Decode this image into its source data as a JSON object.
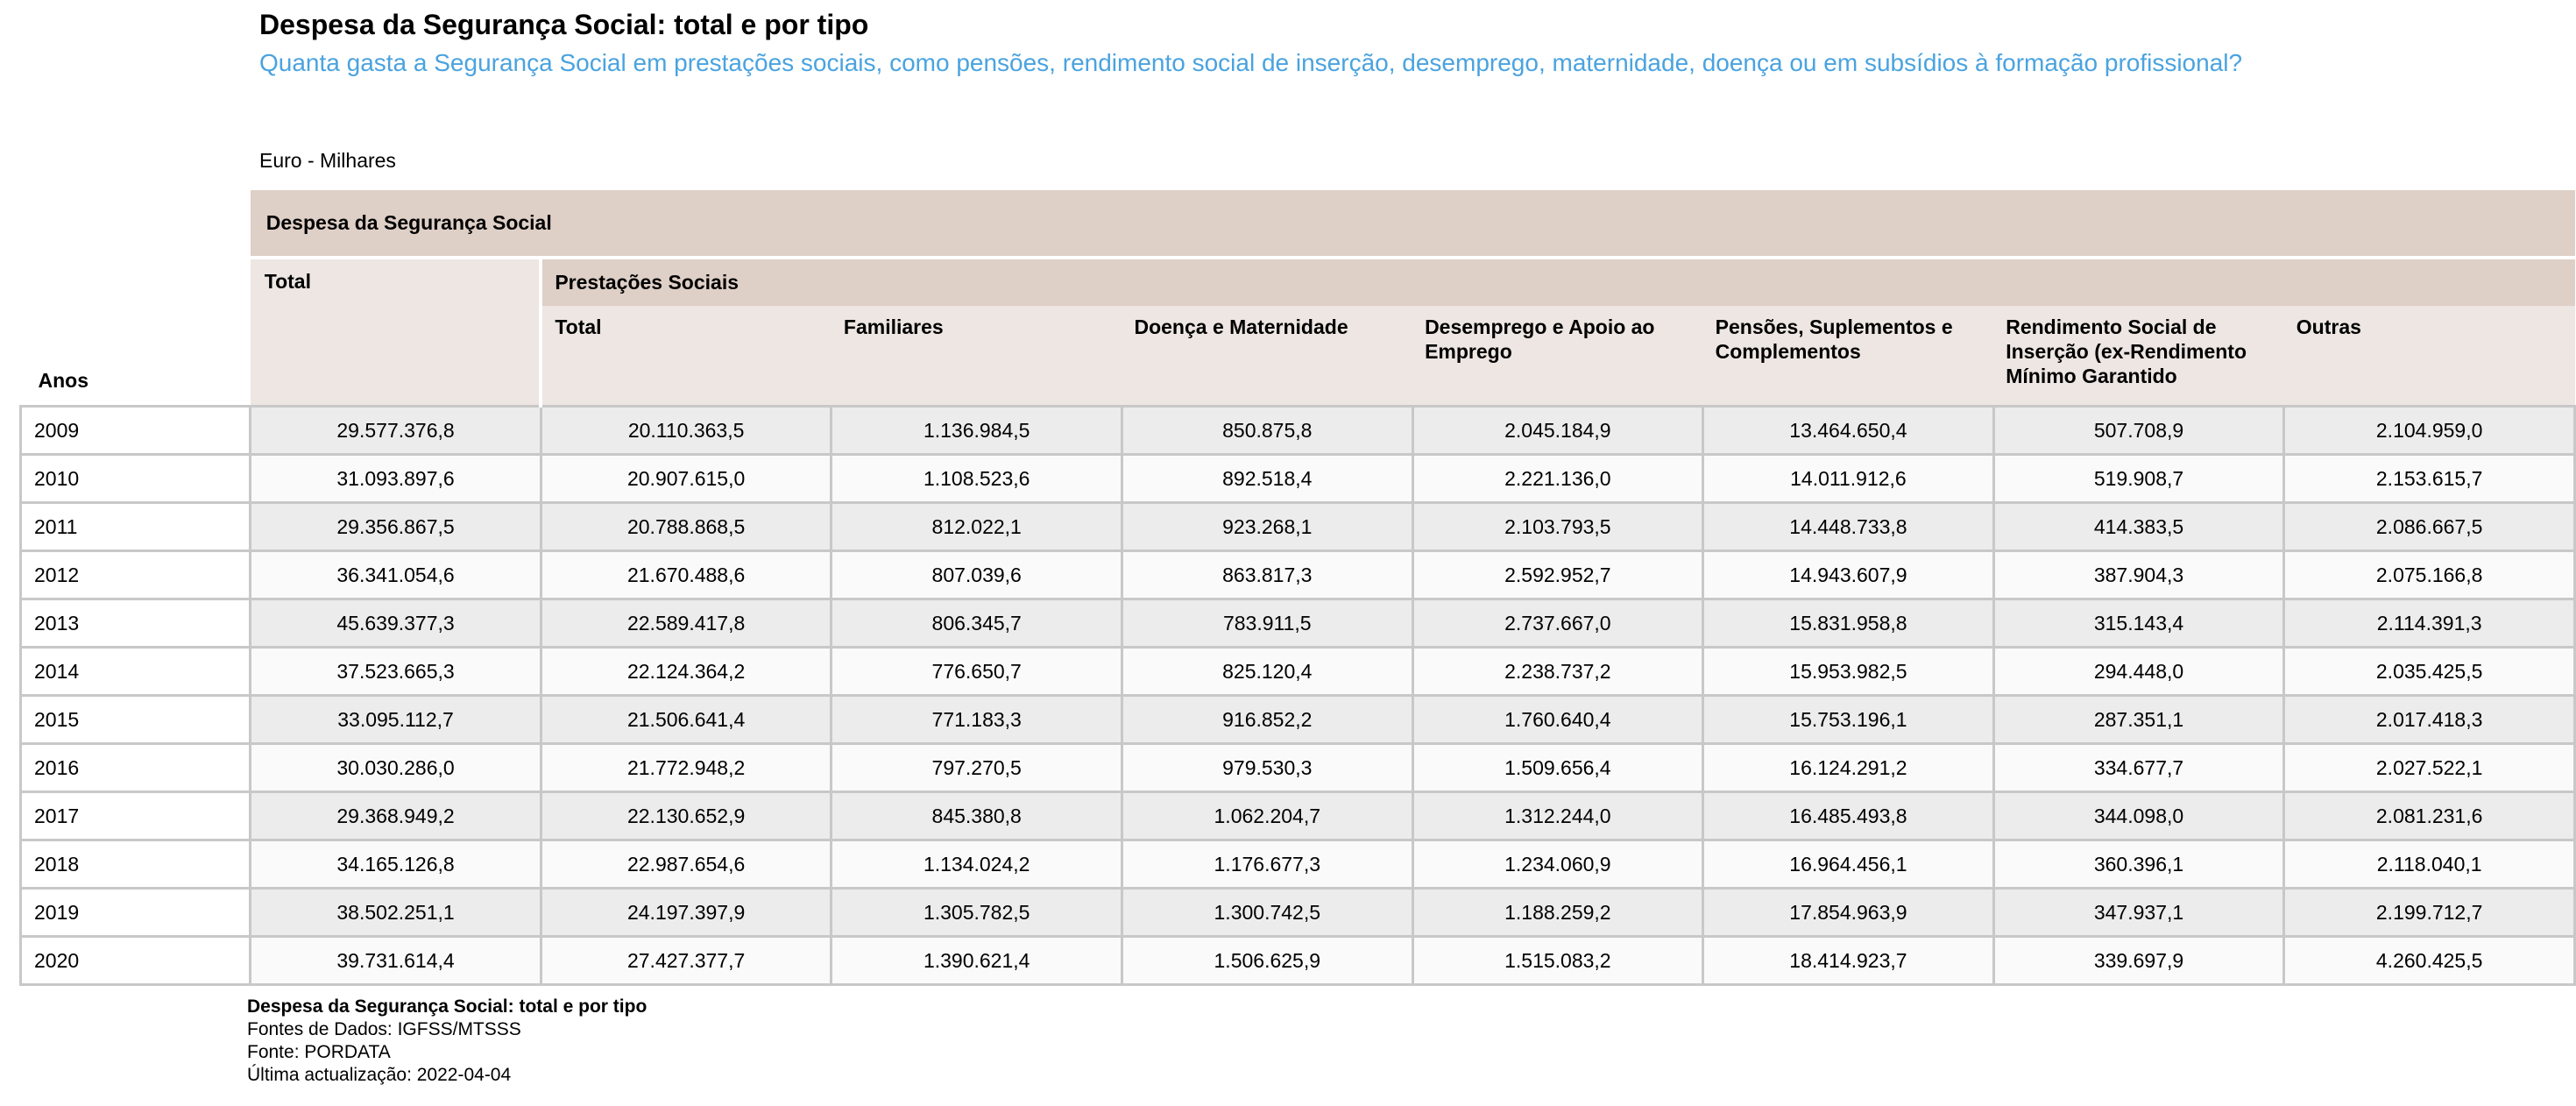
{
  "title": "Despesa da Segurança Social: total e por tipo",
  "subtitle": "Quanta gasta a Segurança Social em prestações sociais, como pensões, rendimento social de inserção, desemprego, maternidade, doença ou em subsídios à formação profissional?",
  "unit": "Euro - Milhares",
  "table": {
    "super_header": "Despesa da Segurança Social",
    "row_header": "Anos",
    "total_header": "Total",
    "group_header": "Prestações Sociais",
    "sub_headers": [
      "Total",
      "Familiares",
      "Doença e Maternidade",
      "Desemprego e Apoio ao Emprego",
      "Pensões, Suplementos e Complementos",
      "Rendimento Social de Inserção (ex-Rendimento Mínimo Garantido",
      "Outras"
    ],
    "rows": [
      {
        "year": "2009",
        "values": [
          "29.577.376,8",
          "20.110.363,5",
          "1.136.984,5",
          "850.875,8",
          "2.045.184,9",
          "13.464.650,4",
          "507.708,9",
          "2.104.959,0"
        ]
      },
      {
        "year": "2010",
        "values": [
          "31.093.897,6",
          "20.907.615,0",
          "1.108.523,6",
          "892.518,4",
          "2.221.136,0",
          "14.011.912,6",
          "519.908,7",
          "2.153.615,7"
        ]
      },
      {
        "year": "2011",
        "values": [
          "29.356.867,5",
          "20.788.868,5",
          "812.022,1",
          "923.268,1",
          "2.103.793,5",
          "14.448.733,8",
          "414.383,5",
          "2.086.667,5"
        ]
      },
      {
        "year": "2012",
        "values": [
          "36.341.054,6",
          "21.670.488,6",
          "807.039,6",
          "863.817,3",
          "2.592.952,7",
          "14.943.607,9",
          "387.904,3",
          "2.075.166,8"
        ]
      },
      {
        "year": "2013",
        "values": [
          "45.639.377,3",
          "22.589.417,8",
          "806.345,7",
          "783.911,5",
          "2.737.667,0",
          "15.831.958,8",
          "315.143,4",
          "2.114.391,3"
        ]
      },
      {
        "year": "2014",
        "values": [
          "37.523.665,3",
          "22.124.364,2",
          "776.650,7",
          "825.120,4",
          "2.238.737,2",
          "15.953.982,5",
          "294.448,0",
          "2.035.425,5"
        ]
      },
      {
        "year": "2015",
        "values": [
          "33.095.112,7",
          "21.506.641,4",
          "771.183,3",
          "916.852,2",
          "1.760.640,4",
          "15.753.196,1",
          "287.351,1",
          "2.017.418,3"
        ]
      },
      {
        "year": "2016",
        "values": [
          "30.030.286,0",
          "21.772.948,2",
          "797.270,5",
          "979.530,3",
          "1.509.656,4",
          "16.124.291,2",
          "334.677,7",
          "2.027.522,1"
        ]
      },
      {
        "year": "2017",
        "values": [
          "29.368.949,2",
          "22.130.652,9",
          "845.380,8",
          "1.062.204,7",
          "1.312.244,0",
          "16.485.493,8",
          "344.098,0",
          "2.081.231,6"
        ]
      },
      {
        "year": "2018",
        "values": [
          "34.165.126,8",
          "22.987.654,6",
          "1.134.024,2",
          "1.176.677,3",
          "1.234.060,9",
          "16.964.456,1",
          "360.396,1",
          "2.118.040,1"
        ]
      },
      {
        "year": "2019",
        "values": [
          "38.502.251,1",
          "24.197.397,9",
          "1.305.782,5",
          "1.300.742,5",
          "1.188.259,2",
          "17.854.963,9",
          "347.937,1",
          "2.199.712,7"
        ]
      },
      {
        "year": "2020",
        "values": [
          "39.731.614,4",
          "27.427.377,7",
          "1.390.621,4",
          "1.506.625,9",
          "1.515.083,2",
          "18.414.923,7",
          "339.697,9",
          "4.260.425,5"
        ]
      }
    ]
  },
  "footer": {
    "title": "Despesa da Segurança Social: total e por tipo",
    "sources": "Fontes de Dados: IGFSS/MTSSS",
    "source": "Fonte: PORDATA",
    "updated": "Última actualização: 2022-04-04"
  }
}
